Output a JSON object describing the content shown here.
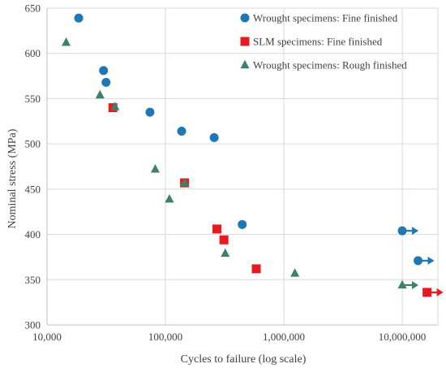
{
  "chart_data": {
    "type": "scatter",
    "title": "",
    "xlabel": "Cycles to failure (log scale)",
    "ylabel": "Nominal stress (MPa)",
    "x_scale": "log",
    "xlim": [
      10000,
      20000000
    ],
    "ylim": [
      300,
      650
    ],
    "x_ticks": [
      10000,
      100000,
      1000000,
      10000000
    ],
    "x_tick_labels": [
      "10,000",
      "100,000",
      "1,000,000",
      "10,000,000"
    ],
    "y_ticks": [
      300,
      350,
      400,
      450,
      500,
      550,
      600,
      650
    ],
    "y_tick_labels": [
      "300",
      "350",
      "400",
      "450",
      "500",
      "550",
      "600",
      "650"
    ],
    "grid": true,
    "legend_position": "top-right",
    "series": [
      {
        "name": "Wrought specimens: Fine finished",
        "marker": "circle",
        "color": "#1f77b4",
        "points": [
          {
            "x": 18500,
            "y": 639
          },
          {
            "x": 30000,
            "y": 581
          },
          {
            "x": 31500,
            "y": 568
          },
          {
            "x": 74000,
            "y": 535
          },
          {
            "x": 137000,
            "y": 514
          },
          {
            "x": 258000,
            "y": 507
          },
          {
            "x": 445000,
            "y": 411
          }
        ],
        "runouts": [
          {
            "x": 10000000,
            "y": 404
          },
          {
            "x": 13600000,
            "y": 371
          }
        ]
      },
      {
        "name": "SLM specimens: Fine finished",
        "marker": "square",
        "color": "#e8191f",
        "points": [
          {
            "x": 36000,
            "y": 540
          },
          {
            "x": 145000,
            "y": 457
          },
          {
            "x": 272000,
            "y": 406
          },
          {
            "x": 312000,
            "y": 394
          },
          {
            "x": 585000,
            "y": 362
          }
        ],
        "runouts": [
          {
            "x": 16200000,
            "y": 336
          }
        ]
      },
      {
        "name": "Wrought specimens: Rough finished",
        "marker": "triangle",
        "color": "#3f7f6e",
        "points": [
          {
            "x": 14500,
            "y": 612
          },
          {
            "x": 28000,
            "y": 554
          },
          {
            "x": 37500,
            "y": 541
          },
          {
            "x": 82000,
            "y": 472
          },
          {
            "x": 108000,
            "y": 439
          },
          {
            "x": 145000,
            "y": 457
          },
          {
            "x": 320000,
            "y": 379
          },
          {
            "x": 1240000,
            "y": 357
          }
        ],
        "runouts": [
          {
            "x": 10000000,
            "y": 344
          }
        ]
      }
    ]
  }
}
